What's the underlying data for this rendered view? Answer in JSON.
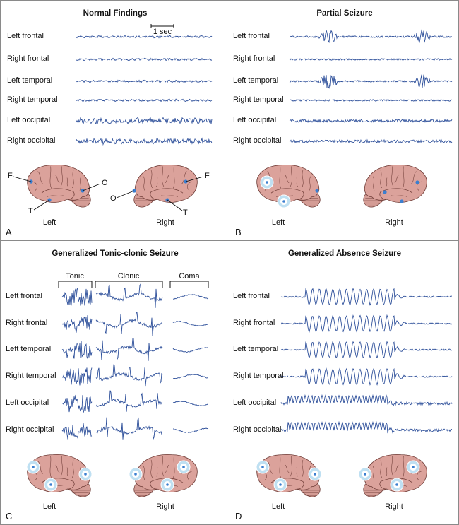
{
  "panels": [
    {
      "letter": "A",
      "title": "Normal Findings",
      "scale_label": "1 sec",
      "channels": [
        "Left frontal",
        "Right frontal",
        "Left temporal",
        "Right temporal",
        "Left occipital",
        "Right occipital"
      ],
      "brain_left": "Left",
      "brain_right": "Right",
      "markers": {
        "frontal": "F",
        "occipital": "O",
        "temporal": "T"
      }
    },
    {
      "letter": "B",
      "title": "Partial Seizure",
      "channels": [
        "Left frontal",
        "Right frontal",
        "Left temporal",
        "Right temporal",
        "Left occipital",
        "Right occipital"
      ],
      "brain_left": "Left",
      "brain_right": "Right"
    },
    {
      "letter": "C",
      "title": "Generalized Tonic-clonic Seizure",
      "phases": [
        "Tonic",
        "Clonic",
        "Coma"
      ],
      "channels": [
        "Left frontal",
        "Right frontal",
        "Left temporal",
        "Right temporal",
        "Left occipital",
        "Right occipital"
      ],
      "brain_left": "Left",
      "brain_right": "Right"
    },
    {
      "letter": "D",
      "title": "Generalized Absence Seizure",
      "channels": [
        "Left frontal",
        "Right frontal",
        "Left temporal",
        "Right temporal",
        "Left occipital",
        "Right occipital"
      ],
      "brain_left": "Left",
      "brain_right": "Right"
    }
  ],
  "colors": {
    "trace": "#2d4f9a",
    "brain_fill": "#dba29b",
    "brain_stroke": "#6e3b36",
    "dot": "#3b7fd0",
    "halo": "#bfe0f2"
  }
}
